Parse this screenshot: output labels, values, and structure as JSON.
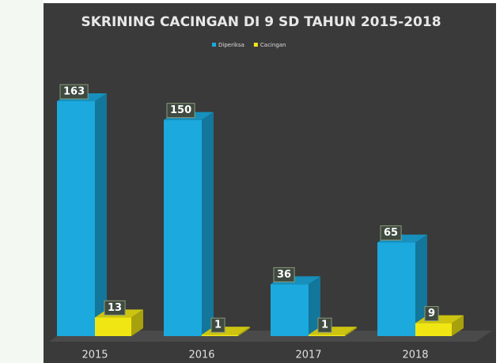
{
  "chart_data": {
    "type": "bar3d",
    "title": "SKRINING CACINGAN  DI 9 SD TAHUN 2015-2018",
    "categories": [
      "2015",
      "2016",
      "2017",
      "2018"
    ],
    "series": [
      {
        "name": "Diperiksa",
        "color": "#1ba9de",
        "values": [
          163,
          150,
          36,
          65
        ]
      },
      {
        "name": "Cacingan",
        "color": "#f0e614",
        "values": [
          13,
          1,
          1,
          9
        ]
      }
    ],
    "legend": "top"
  }
}
